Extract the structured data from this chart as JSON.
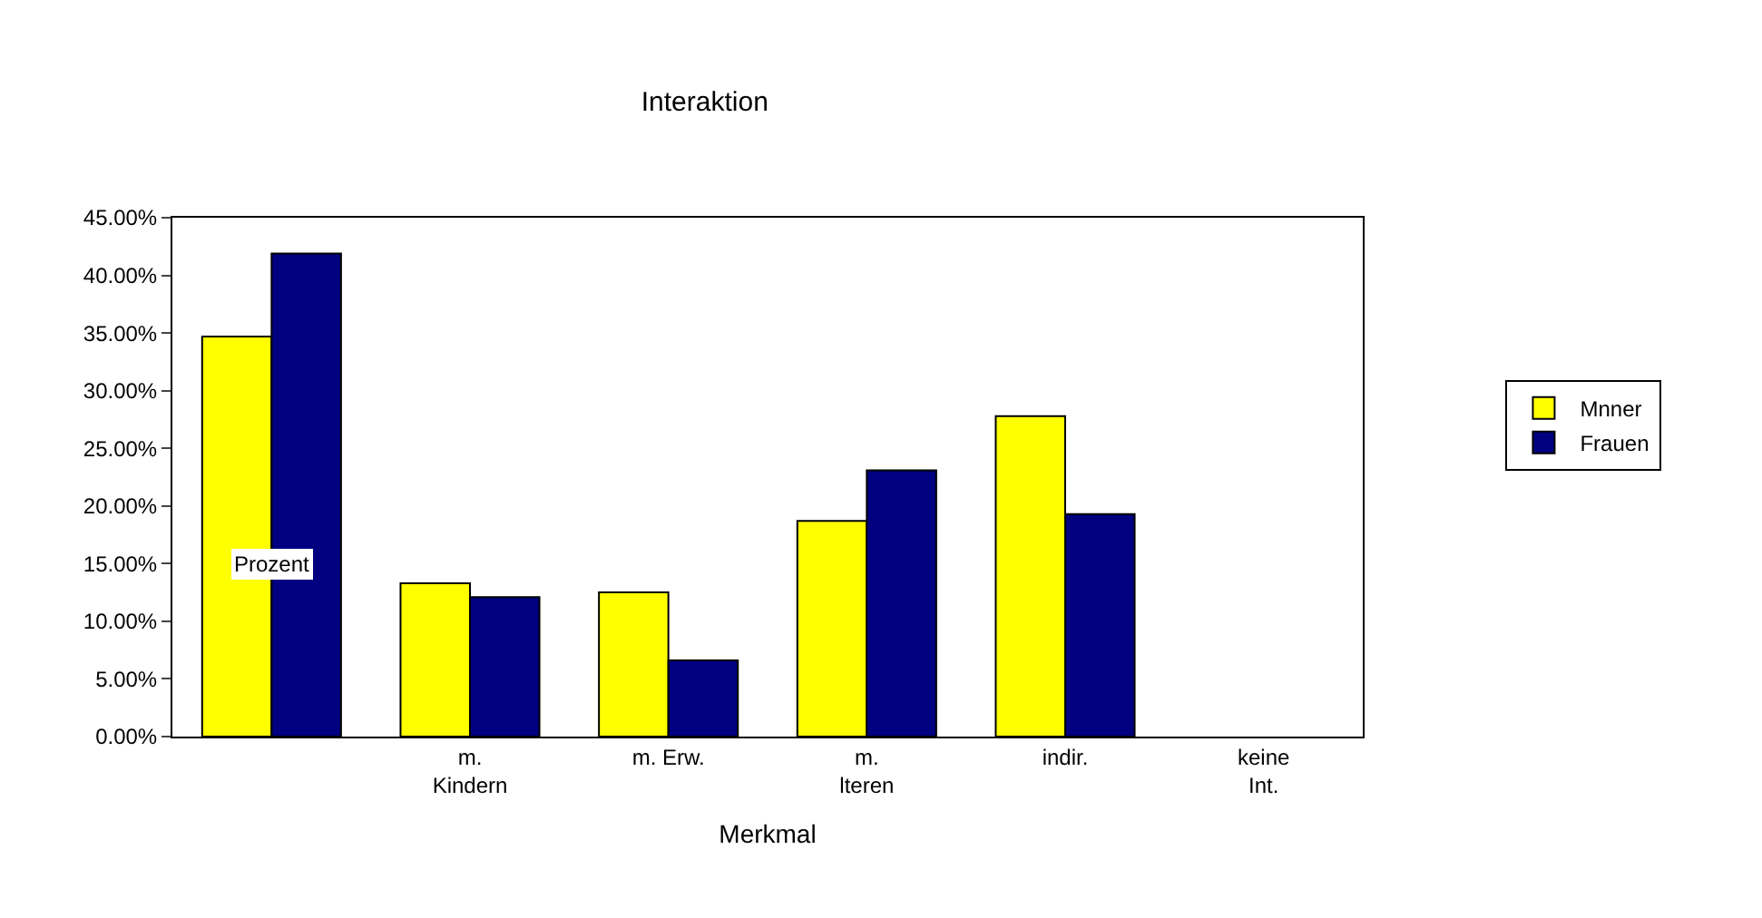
{
  "chart_data": {
    "type": "bar",
    "title": "Interaktion",
    "xlabel": "Merkmal",
    "ylabel": "Prozent",
    "categories": [
      null,
      "m. Kindern",
      "m. Erw.",
      "m. lteren",
      "indir.",
      "keine Int."
    ],
    "series": [
      {
        "name": "Mnner",
        "color": "#ffff00",
        "values": [
          34.7,
          13.3,
          12.5,
          18.7,
          27.8,
          null
        ]
      },
      {
        "name": "Frauen",
        "color": "#000080",
        "values": [
          41.9,
          12.1,
          6.6,
          23.1,
          19.3,
          null
        ]
      }
    ],
    "ylim": [
      0,
      45
    ],
    "yticks": [
      {
        "value": 0,
        "label": "0.00%"
      },
      {
        "value": 5,
        "label": "5.00%"
      },
      {
        "value": 10,
        "label": "10.00%"
      },
      {
        "value": 15,
        "label": "15.00%"
      },
      {
        "value": 20,
        "label": "20.00%"
      },
      {
        "value": 25,
        "label": "25.00%"
      },
      {
        "value": 30,
        "label": "30.00%"
      },
      {
        "value": 35,
        "label": "35.00%"
      },
      {
        "value": 40,
        "label": "40.00%"
      },
      {
        "value": 45,
        "label": "45.00%"
      }
    ],
    "legend": "right"
  }
}
